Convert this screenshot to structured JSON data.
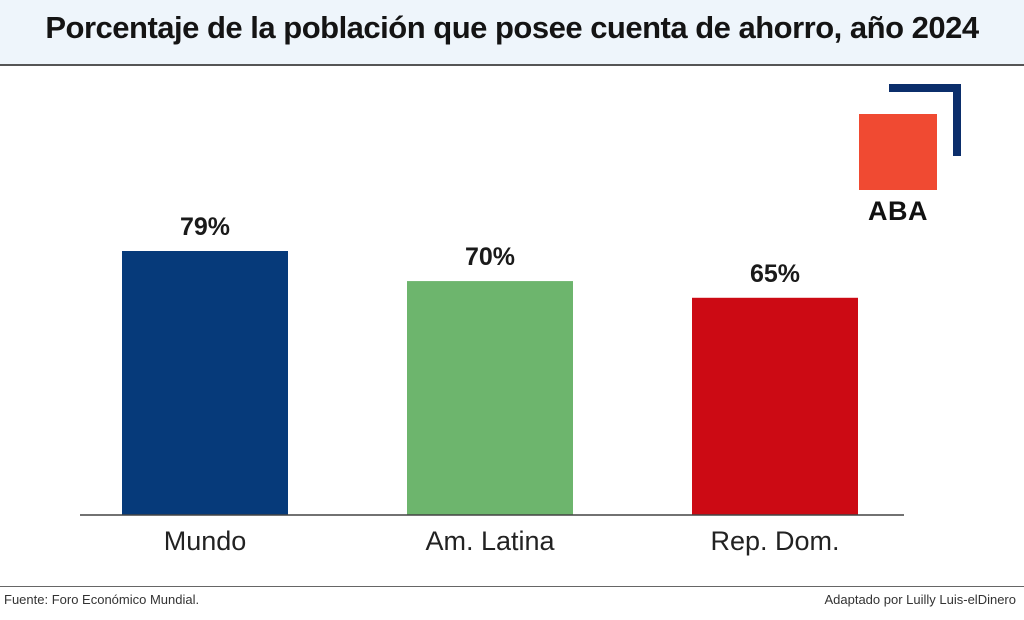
{
  "header": {
    "title": "Porcentaje de la población que posee cuenta de ahorro, año 2024"
  },
  "logo": {
    "text": "ABA"
  },
  "colors": {
    "Mundo": "#063a7a",
    "Am. Latina": "#6db56d",
    "Rep. Dom.": "#cc0a14",
    "logo_square": "#f04a32",
    "logo_frame": "#0b2e6b"
  },
  "chart_data": {
    "type": "bar",
    "title": "Porcentaje de la población que posee cuenta de ahorro, año 2024",
    "categories": [
      "Mundo",
      "Am. Latina",
      "Rep. Dom."
    ],
    "values": [
      79,
      70,
      65
    ],
    "data_labels": [
      "79%",
      "70%",
      "65%"
    ],
    "xlabel": "",
    "ylabel": "",
    "ylim": [
      0,
      79
    ],
    "grid": false,
    "legend": "none"
  },
  "footer": {
    "source": "Fuente: Foro Económico Mundial.",
    "credit": "Adaptado por Luilly Luis-elDinero"
  }
}
